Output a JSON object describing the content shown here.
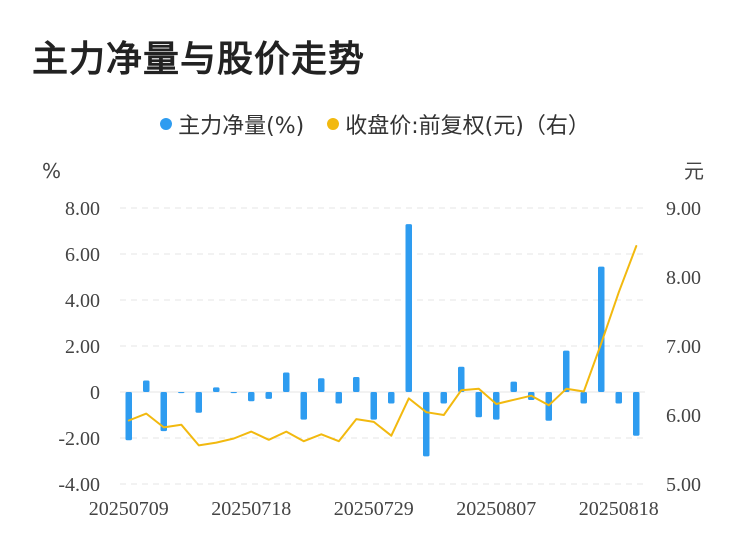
{
  "title": "主力净量与股价走势",
  "legend": [
    {
      "label": "主力净量(%)",
      "color": "#2e9cf0"
    },
    {
      "label": "收盘价:前复权(元)（右）",
      "color": "#f2b90f"
    }
  ],
  "chart_data": {
    "type": "bar+line",
    "left_unit": "%",
    "right_unit": "元",
    "left_ticks": [
      "8.00",
      "6.00",
      "4.00",
      "2.00",
      "0",
      "-2.00",
      "-4.00"
    ],
    "right_ticks": [
      "9.00",
      "8.00",
      "7.00",
      "6.00",
      "5.00"
    ],
    "x_tick_labels": [
      "20250709",
      "20250718",
      "20250729",
      "20250807",
      "20250818"
    ],
    "x_tick_indices": [
      0,
      7,
      14,
      21,
      28
    ],
    "left_ylim": [
      -4,
      8
    ],
    "right_ylim": [
      5,
      9
    ],
    "bar_color": "#2e9cf0",
    "line_color": "#f2b90f",
    "series": [
      {
        "name": "主力净量(%)",
        "axis": "left",
        "values": [
          -2.1,
          0.5,
          -1.7,
          -0.05,
          -0.9,
          0.2,
          -0.05,
          -0.4,
          -0.3,
          0.85,
          -1.2,
          0.6,
          -0.5,
          0.65,
          -1.2,
          -0.5,
          7.3,
          -2.8,
          -0.5,
          1.1,
          -1.1,
          -1.2,
          0.45,
          -0.35,
          -1.25,
          1.8,
          -0.5,
          5.45,
          -0.5,
          -1.9
        ]
      },
      {
        "name": "收盘价:前复权(元)（右）",
        "axis": "right",
        "values": [
          5.92,
          6.02,
          5.82,
          5.86,
          5.56,
          5.6,
          5.66,
          5.76,
          5.64,
          5.76,
          5.62,
          5.72,
          5.62,
          5.94,
          5.9,
          5.7,
          6.24,
          6.04,
          6.0,
          6.36,
          6.38,
          6.16,
          6.22,
          6.28,
          6.14,
          6.38,
          6.34,
          7.04,
          7.78,
          8.45
        ]
      }
    ]
  }
}
